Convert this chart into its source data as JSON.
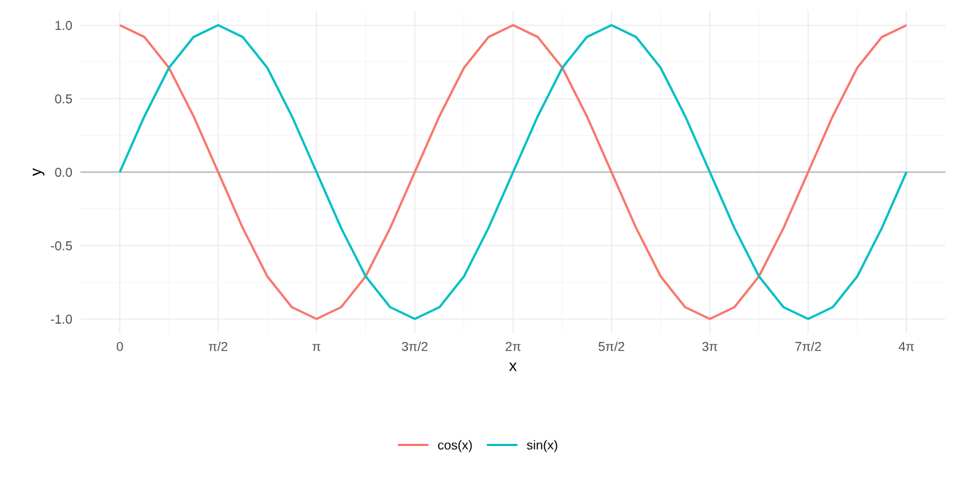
{
  "chart_data": {
    "type": "line",
    "xlabel": "x",
    "ylabel": "y",
    "x": [
      0,
      0.393,
      0.785,
      1.178,
      1.571,
      1.963,
      2.356,
      2.749,
      3.142,
      3.534,
      3.927,
      4.32,
      4.712,
      5.105,
      5.498,
      5.89,
      6.283,
      6.676,
      7.069,
      7.461,
      7.854,
      8.247,
      8.639,
      9.032,
      9.425,
      9.817,
      10.21,
      10.603,
      10.996,
      11.388,
      11.781,
      12.174,
      12.566
    ],
    "series": [
      {
        "name": "cos(x)",
        "color": "#f8766d",
        "values": [
          1,
          0.92,
          0.71,
          0.38,
          0,
          -0.38,
          -0.71,
          -0.92,
          -1,
          -0.92,
          -0.71,
          -0.38,
          0,
          0.38,
          0.71,
          0.92,
          1,
          0.92,
          0.71,
          0.38,
          0,
          -0.38,
          -0.71,
          -0.92,
          -1,
          -0.92,
          -0.71,
          -0.38,
          0,
          0.38,
          0.71,
          0.92,
          1
        ]
      },
      {
        "name": "sin(x)",
        "color": "#00bfc4",
        "values": [
          0,
          0.38,
          0.71,
          0.92,
          1,
          0.92,
          0.71,
          0.38,
          0,
          -0.38,
          -0.71,
          -0.92,
          -1,
          -0.92,
          -0.71,
          -0.38,
          0,
          0.38,
          0.71,
          0.92,
          1,
          0.92,
          0.71,
          0.38,
          0,
          -0.38,
          -0.71,
          -0.92,
          -1,
          -0.92,
          -0.71,
          -0.38,
          0
        ]
      }
    ],
    "xlim": [
      -0.63,
      13.19
    ],
    "ylim": [
      -1.1,
      1.1
    ],
    "xticks": [
      0,
      {
        "value": 1.571,
        "label": "π/2"
      },
      {
        "value": 3.142,
        "label": "π"
      },
      {
        "value": 4.712,
        "label": "3π/2"
      },
      {
        "value": 6.283,
        "label": "2π"
      },
      {
        "value": 7.854,
        "label": "5π/2"
      },
      {
        "value": 9.425,
        "label": "3π"
      },
      {
        "value": 10.996,
        "label": "7π/2"
      },
      {
        "value": 12.566,
        "label": "4π"
      }
    ],
    "yticks": [
      {
        "value": -1,
        "label": "-1.0"
      },
      {
        "value": -0.5,
        "label": "-0.5"
      },
      {
        "value": 0,
        "label": "0.0"
      },
      {
        "value": 0.5,
        "label": "0.5"
      },
      {
        "value": 1,
        "label": "1.0"
      }
    ],
    "ref_lines": [
      {
        "axis": "y",
        "value": 0,
        "color": "#b3b3b3"
      }
    ],
    "grid": true,
    "legend": "bottom",
    "marker": "none",
    "line_style": "solid"
  }
}
